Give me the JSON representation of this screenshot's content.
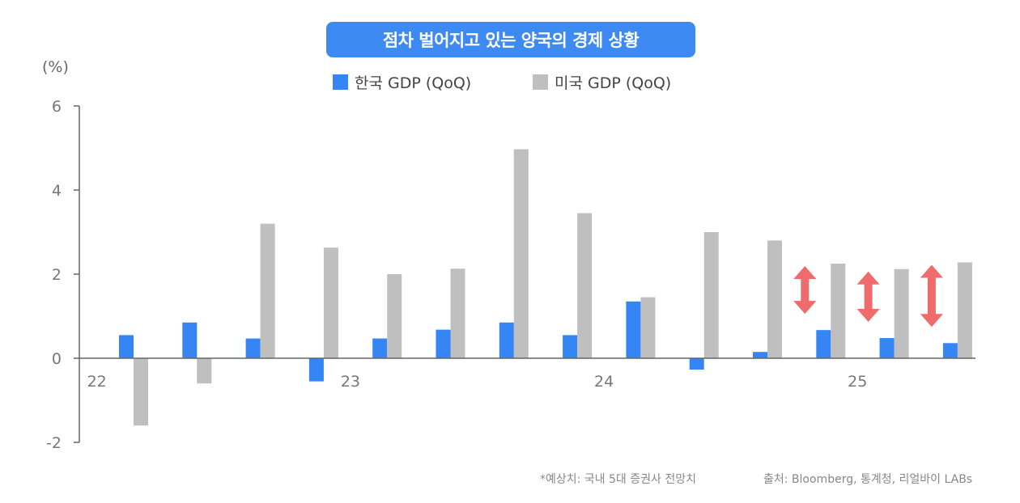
{
  "title": "점차 벌어지고 있는 양국의 경제 상황",
  "unit_label": "(%)",
  "legend": [
    {
      "label": "한국 GDP (QoQ)",
      "color": "#3585f5"
    },
    {
      "label": "미국 GDP (QoQ)",
      "color": "#bfbfbf"
    }
  ],
  "footnotes": {
    "estimate": "*예상치: 국내 5대 증권사 전망치",
    "source": "출처: Bloomberg, 통계청, 리얼바이 LABs"
  },
  "colors": {
    "korea": "#3585f5",
    "us": "#bfbfbf",
    "arrow": "#f06b6b",
    "axis": "#666666",
    "tick_text": "#777777"
  },
  "chart_data": {
    "type": "bar",
    "title": "점차 벌어지고 있는 양국의 경제 상황",
    "ylabel": "(%)",
    "ylim": [
      -2,
      6
    ],
    "yticks": [
      -2,
      0,
      2,
      4,
      6
    ],
    "quarter_count": 14,
    "x_labels": [
      {
        "label": "22",
        "quarter_index": -0.4
      },
      {
        "label": "23",
        "quarter_index": 3.6
      },
      {
        "label": "24",
        "quarter_index": 7.6
      },
      {
        "label": "25",
        "quarter_index": 11.6
      }
    ],
    "series": [
      {
        "name": "한국 GDP (QoQ)",
        "values": [
          0.55,
          0.85,
          0.47,
          -0.55,
          0.47,
          0.68,
          0.85,
          0.55,
          1.35,
          -0.27,
          0.15,
          0.67,
          0.48,
          0.36
        ]
      },
      {
        "name": "미국 GDP (QoQ)",
        "values": [
          -1.6,
          -0.6,
          3.2,
          2.63,
          2.0,
          2.13,
          4.97,
          3.45,
          1.45,
          3.0,
          2.8,
          2.25,
          2.12,
          2.28
        ]
      }
    ],
    "gap_arrows_at_quarters": [
      11,
      12,
      13
    ]
  }
}
